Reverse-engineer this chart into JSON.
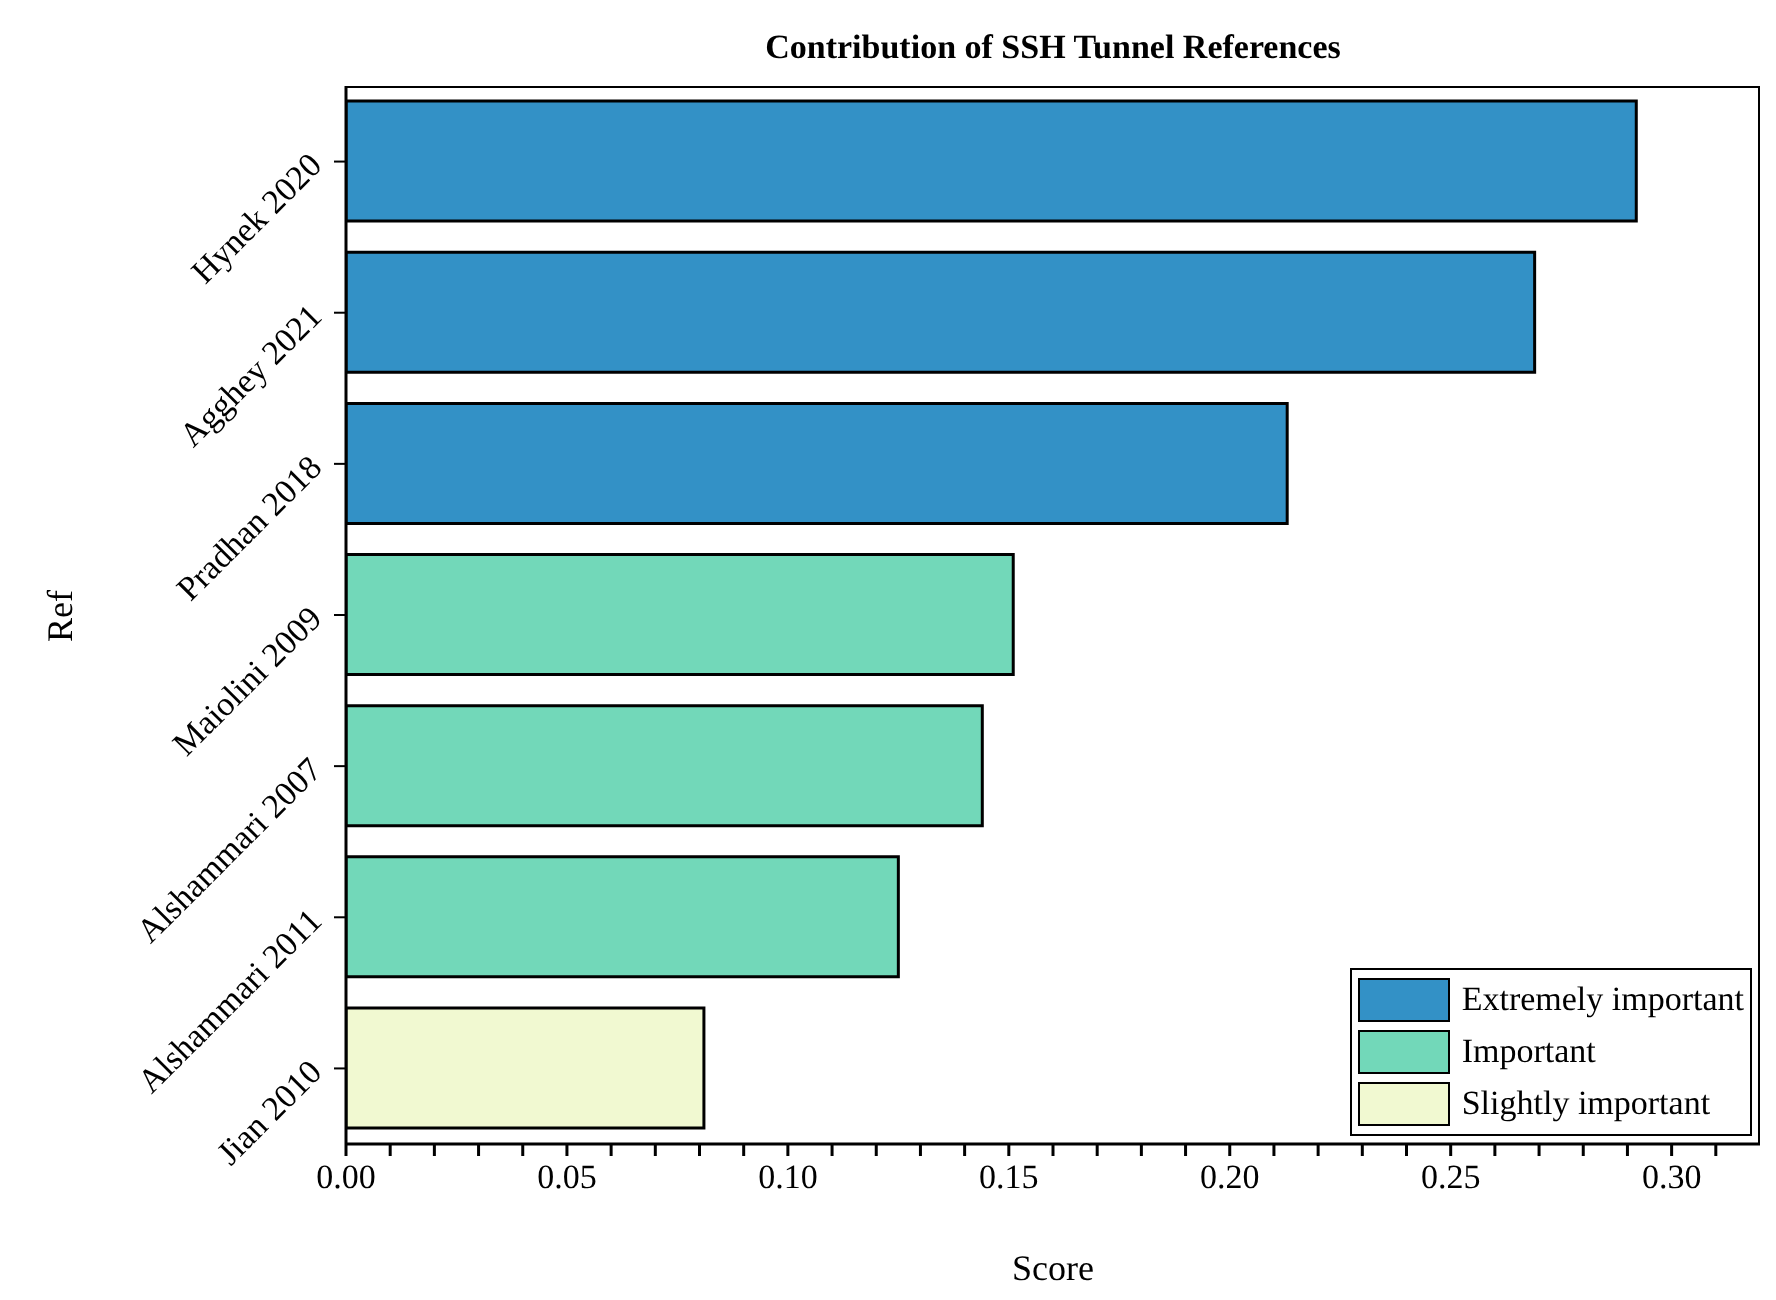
{
  "chart_data": {
    "type": "bar",
    "orientation": "horizontal",
    "title": "Contribution of SSH Tunnel References",
    "xlabel": "Score",
    "ylabel": "Ref",
    "categories": [
      "Hynek 2020",
      "Agghey 2021",
      "Pradhan 2018",
      "Maiolini 2009",
      "Alshammari 2007",
      "Alshammari 2011",
      "Jian 2010"
    ],
    "series": [
      {
        "name": "Extremely important",
        "color": "#3391c6",
        "values": [
          0.292,
          0.269,
          0.213,
          null,
          null,
          null,
          null
        ]
      },
      {
        "name": "Important",
        "color": "#72d8b9",
        "values": [
          null,
          null,
          null,
          0.151,
          0.144,
          0.125,
          null
        ]
      },
      {
        "name": "Slightly important",
        "color": "#f1f9d1",
        "values": [
          null,
          null,
          null,
          null,
          null,
          null,
          0.081
        ]
      }
    ],
    "xlim": [
      0,
      0.32
    ],
    "xticks": [
      {
        "value": 0,
        "label": "0.00"
      },
      {
        "value": 0.01,
        "label": null
      },
      {
        "value": 0.02,
        "label": null
      },
      {
        "value": 0.03,
        "label": null
      },
      {
        "value": 0.04,
        "label": null
      },
      {
        "value": 0.05,
        "label": "0.05"
      },
      {
        "value": 0.06,
        "label": null
      },
      {
        "value": 0.07,
        "label": null
      },
      {
        "value": 0.08,
        "label": null
      },
      {
        "value": 0.09,
        "label": null
      },
      {
        "value": 0.1,
        "label": "0.10"
      },
      {
        "value": 0.11,
        "label": null
      },
      {
        "value": 0.12,
        "label": null
      },
      {
        "value": 0.13,
        "label": null
      },
      {
        "value": 0.14,
        "label": null
      },
      {
        "value": 0.15,
        "label": "0.15"
      },
      {
        "value": 0.16,
        "label": null
      },
      {
        "value": 0.17,
        "label": null
      },
      {
        "value": 0.18,
        "label": null
      },
      {
        "value": 0.19,
        "label": null
      },
      {
        "value": 0.2,
        "label": "0.20"
      },
      {
        "value": 0.21,
        "label": null
      },
      {
        "value": 0.22,
        "label": null
      },
      {
        "value": 0.23,
        "label": null
      },
      {
        "value": 0.24,
        "label": null
      },
      {
        "value": 0.25,
        "label": "0.25"
      },
      {
        "value": 0.26,
        "label": null
      },
      {
        "value": 0.27,
        "label": null
      },
      {
        "value": 0.28,
        "label": null
      },
      {
        "value": 0.29,
        "label": null
      },
      {
        "value": 0.3,
        "label": "0.30"
      },
      {
        "value": 0.31,
        "label": null
      }
    ],
    "grid": false,
    "legend": "bottom right"
  }
}
